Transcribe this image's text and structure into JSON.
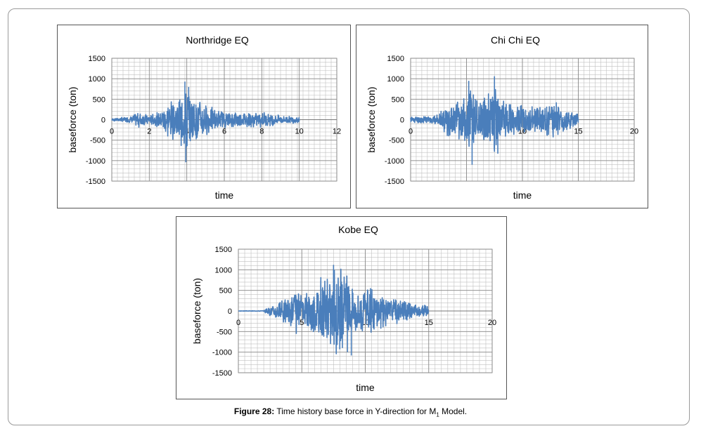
{
  "caption": {
    "label": "Figure 28:",
    "text_pre": "Time history base force in Y-direction for M",
    "subscript": "1",
    "text_post": " Model."
  },
  "colors": {
    "series": "#4a7ebb",
    "grid": "#c0c0c0",
    "axis": "#555555"
  },
  "chart_data": [
    {
      "type": "line",
      "title": "Northridge EQ",
      "xlabel": "time",
      "ylabel": "baseforce (ton)",
      "xlim": [
        0,
        12
      ],
      "ylim": [
        -1500,
        1500
      ],
      "xticks": [
        0,
        2,
        4,
        6,
        8,
        10,
        12
      ],
      "yticks": [
        1500,
        1000,
        500,
        0,
        -500,
        -1000,
        -1500
      ],
      "duration": 10,
      "series": [
        {
          "name": "baseforce",
          "envelope": [
            [
              0,
              30
            ],
            [
              1,
              90
            ],
            [
              1.5,
              210
            ],
            [
              2,
              120
            ],
            [
              2.5,
              200
            ],
            [
              2.8,
              420
            ],
            [
              3.2,
              560
            ],
            [
              3.6,
              520
            ],
            [
              3.9,
              900
            ],
            [
              4.05,
              -1050
            ],
            [
              4.2,
              600
            ],
            [
              4.6,
              560
            ],
            [
              5.5,
              280
            ],
            [
              6,
              220
            ],
            [
              7,
              200
            ],
            [
              8,
              200
            ],
            [
              9,
              120
            ],
            [
              10,
              80
            ]
          ],
          "peaks": [
            [
              3.9,
              930
            ],
            [
              3.95,
              -1040
            ],
            [
              4.1,
              800
            ],
            [
              3.7,
              -640
            ],
            [
              4.5,
              -480
            ]
          ],
          "seed": 7
        }
      ]
    },
    {
      "type": "line",
      "title": "Chi Chi EQ",
      "xlabel": "time",
      "ylabel": "baseforce (ton)",
      "xlim": [
        0,
        20
      ],
      "ylim": [
        -1500,
        1500
      ],
      "xticks": [
        0,
        5,
        10,
        15,
        20
      ],
      "yticks": [
        1500,
        1000,
        500,
        0,
        -500,
        -1000,
        -1500
      ],
      "duration": 15,
      "series": [
        {
          "name": "baseforce",
          "envelope": [
            [
              0,
              90
            ],
            [
              2,
              100
            ],
            [
              2.8,
              220
            ],
            [
              3,
              400
            ],
            [
              4,
              420
            ],
            [
              4.8,
              650
            ],
            [
              5.3,
              950
            ],
            [
              6,
              650
            ],
            [
              7,
              720
            ],
            [
              7.5,
              1000
            ],
            [
              8,
              600
            ],
            [
              9.5,
              380
            ],
            [
              11,
              380
            ],
            [
              13,
              430
            ],
            [
              14,
              260
            ],
            [
              15,
              150
            ]
          ],
          "peaks": [
            [
              5.5,
              -1100
            ],
            [
              7.5,
              1060
            ],
            [
              7.8,
              -830
            ],
            [
              5.2,
              950
            ]
          ],
          "seed": 11
        }
      ]
    },
    {
      "type": "line",
      "title": "Kobe EQ",
      "xlabel": "time",
      "ylabel": "baseforce (ton)",
      "xlim": [
        0,
        20
      ],
      "ylim": [
        -1500,
        1500
      ],
      "xticks": [
        0,
        5,
        10,
        15,
        20
      ],
      "yticks": [
        1500,
        1000,
        500,
        0,
        -500,
        -1000,
        -1500
      ],
      "duration": 15,
      "series": [
        {
          "name": "baseforce",
          "envelope": [
            [
              0,
              5
            ],
            [
              2,
              8
            ],
            [
              2.2,
              90
            ],
            [
              3,
              200
            ],
            [
              4,
              420
            ],
            [
              4.5,
              600
            ],
            [
              5,
              380
            ],
            [
              6,
              650
            ],
            [
              6.7,
              900
            ],
            [
              7.5,
              1100
            ],
            [
              8.5,
              1000
            ],
            [
              9,
              700
            ],
            [
              10,
              600
            ],
            [
              11,
              500
            ],
            [
              12,
              350
            ],
            [
              13,
              300
            ],
            [
              14,
              200
            ],
            [
              15,
              120
            ]
          ],
          "peaks": [
            [
              7.5,
              1120
            ],
            [
              8.9,
              -1080
            ],
            [
              8.6,
              -1000
            ],
            [
              6.5,
              820
            ],
            [
              8.2,
              -900
            ]
          ],
          "seed": 3
        }
      ]
    }
  ]
}
